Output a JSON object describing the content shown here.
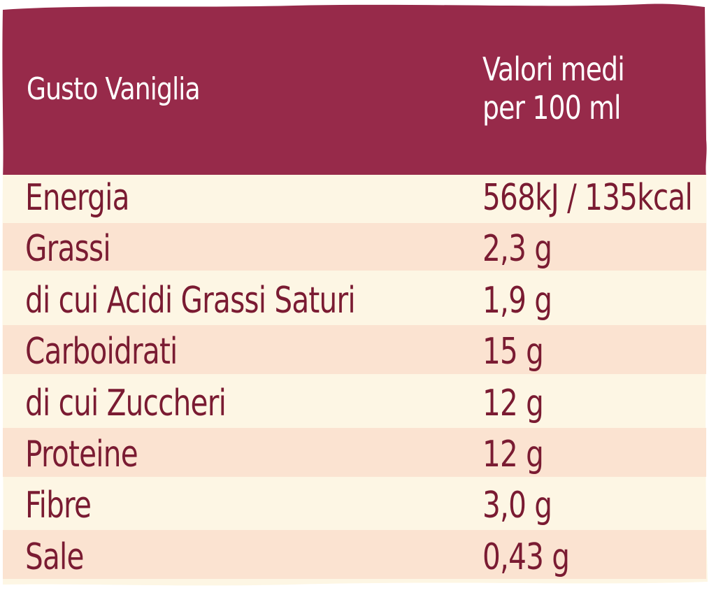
{
  "header": {
    "title": "Gusto Vaniglia",
    "column_label_line1": "Valori medi",
    "column_label_line2": "per 100 ml"
  },
  "rows": [
    {
      "name": "Energia",
      "value": "568kJ / 135kcal"
    },
    {
      "name": "Grassi",
      "value": "2,3 g"
    },
    {
      "name": "di cui Acidi Grassi Saturi",
      "value": "1,9 g"
    },
    {
      "name": "Carboidrati",
      "value": "15 g"
    },
    {
      "name": "di cui Zuccheri",
      "value": "12 g"
    },
    {
      "name": "Proteine",
      "value": "12 g"
    },
    {
      "name": "Fibre",
      "value": "3,0 g"
    },
    {
      "name": "Sale",
      "value": "0,43 g"
    }
  ],
  "colors": {
    "header_bg": "#972a4a",
    "text_dark": "#7a1b32",
    "row_light": "#fdf6e4",
    "row_peach": "#fbe3d1",
    "page_bg": "#ffffff"
  }
}
